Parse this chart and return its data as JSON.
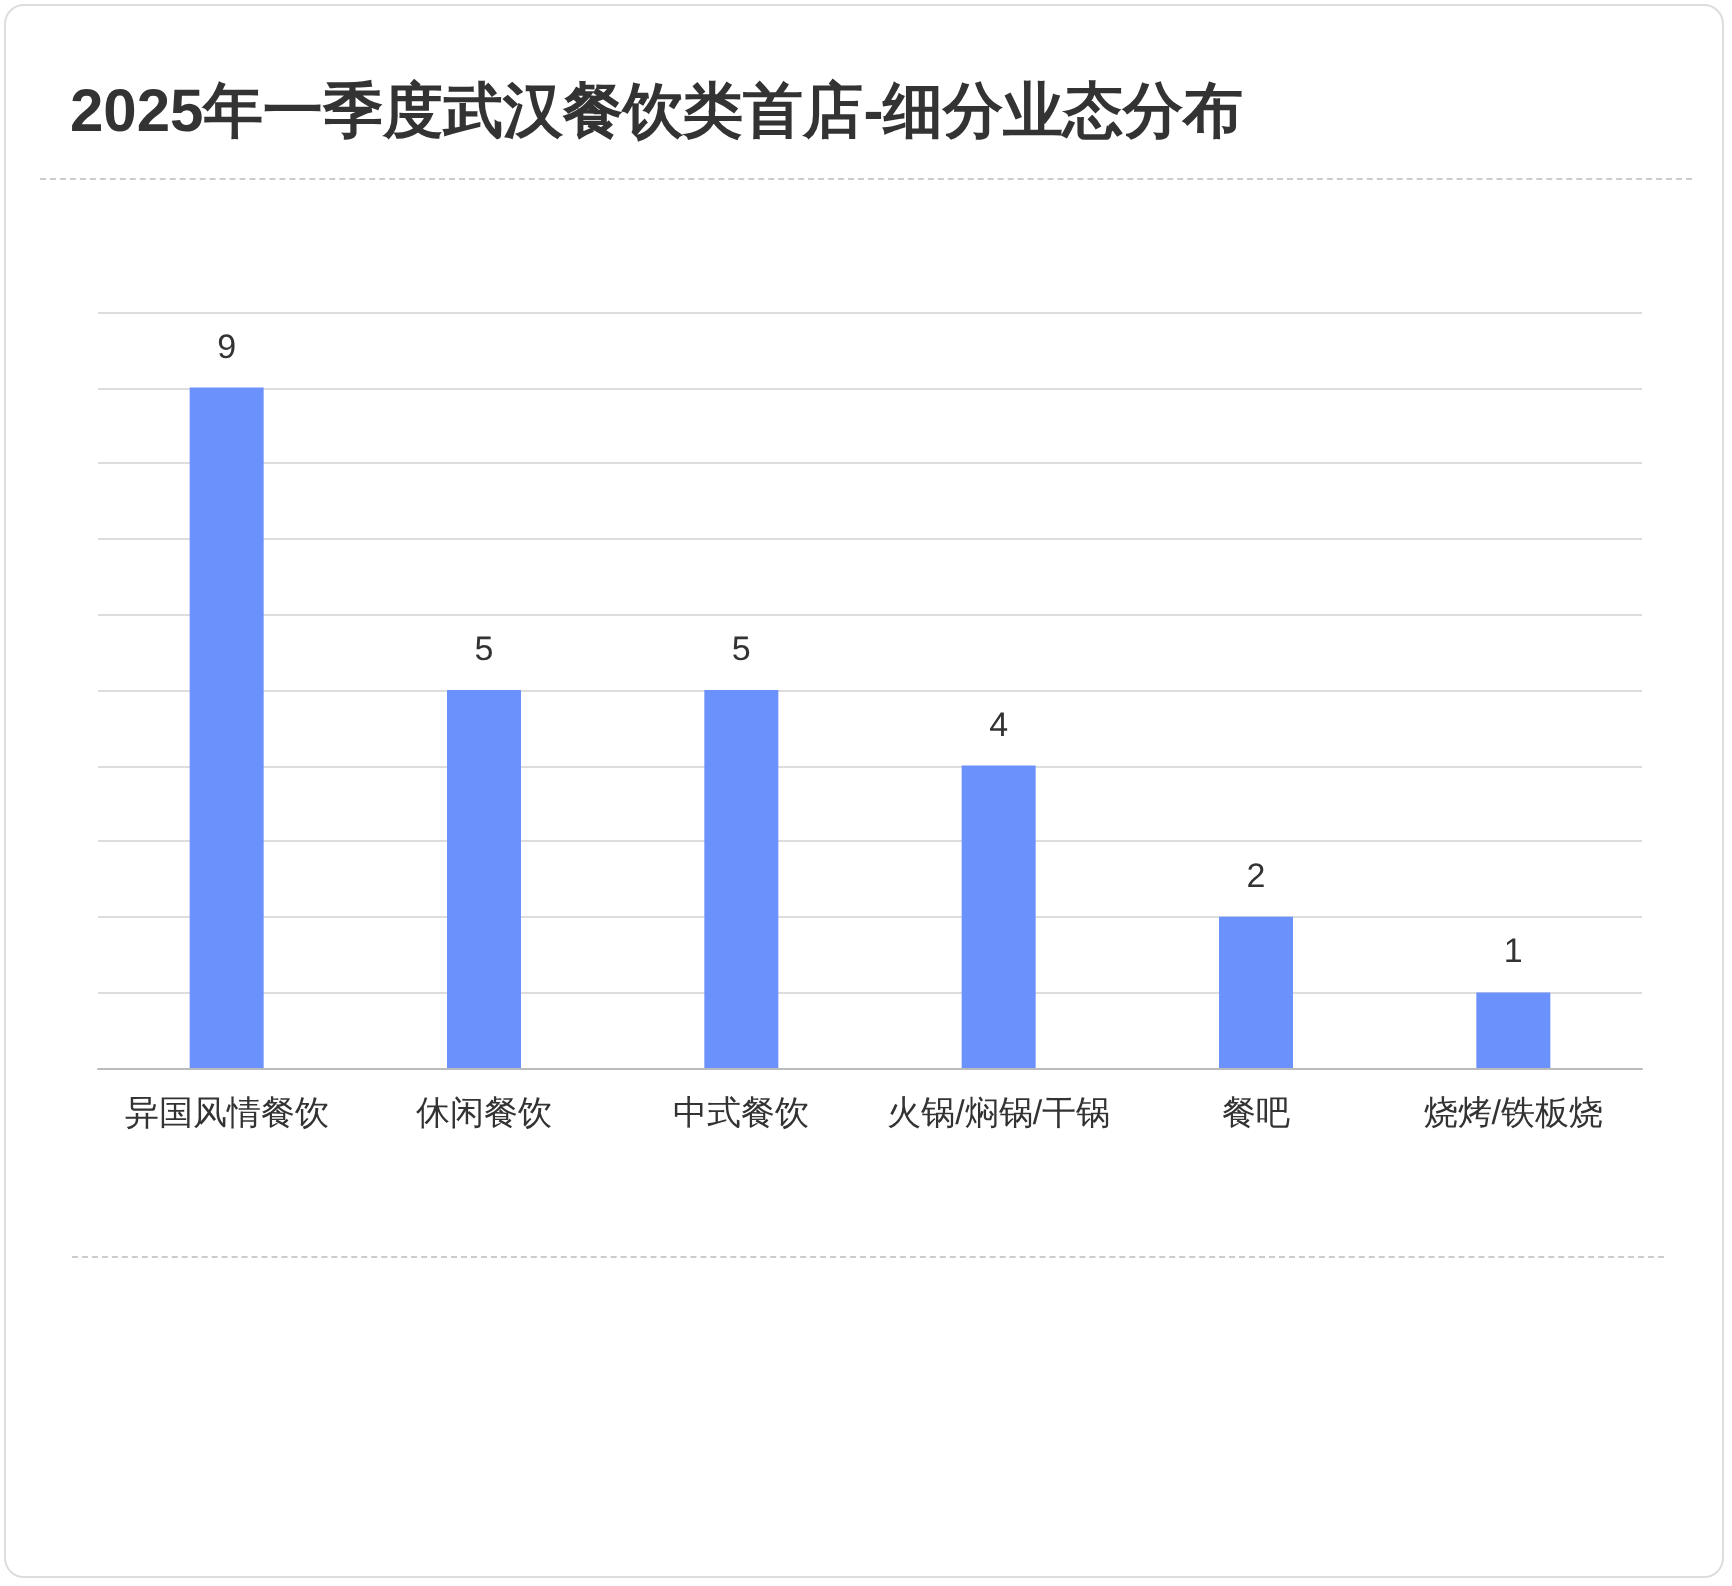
{
  "chart_data": {
    "type": "bar",
    "title": "2025年一季度武汉餐饮类首店-细分业态分布",
    "categories": [
      "异国风情餐饮",
      "休闲餐饮",
      "中式餐饮",
      "火锅/焖锅/干锅",
      "餐吧",
      "烧烤/铁板烧"
    ],
    "values": [
      9,
      5,
      5,
      4,
      2,
      1
    ],
    "color": "#6b91fc",
    "ylim": [
      0,
      10
    ],
    "yticks": [
      {
        "value": 0,
        "label": null
      },
      {
        "value": 1,
        "label": null
      },
      {
        "value": 2,
        "label": null
      },
      {
        "value": 3,
        "label": null
      },
      {
        "value": 4,
        "label": null
      },
      {
        "value": 5,
        "label": null
      },
      {
        "value": 6,
        "label": null
      },
      {
        "value": 7,
        "label": null
      },
      {
        "value": 8,
        "label": null
      },
      {
        "value": 9,
        "label": null
      },
      {
        "value": 10,
        "label": null
      }
    ],
    "grid": "y",
    "tick_labels": "x",
    "data_labels": true
  }
}
